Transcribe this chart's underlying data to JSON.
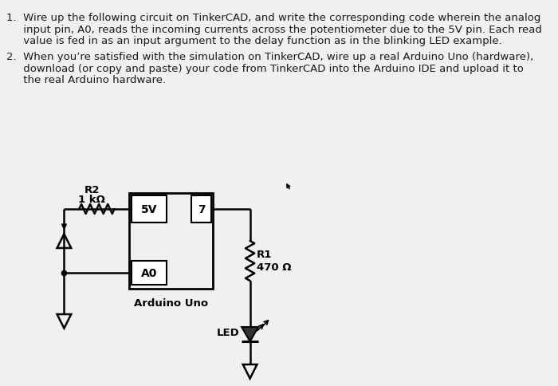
{
  "bg_color": "#f0f0f0",
  "text_color": "#1a1a1a",
  "line1": "1.  Wire up the following circuit on TinkerCAD, and write the corresponding code wherein the analog",
  "line2": "     input pin, A0, reads the incoming currents across the potentiometer due to the 5V pin. Each read",
  "line3": "     value is fed in as an input argument to the delay function as in the blinking LED example.",
  "line4": "2.  When you’re satisfied with the simulation on TinkerCAD, wire up a real Arduino Uno (hardware),",
  "line5": "     download (or copy and paste) your code from TinkerCAD into the Arduino IDE and upload it to",
  "line6": "     the real Arduino hardware.",
  "r2_label": "R2",
  "r2_value": "1 kΩ",
  "r1_label": "R1",
  "r1_value": "470 Ω",
  "pin5v": "5V",
  "pin7": "7",
  "pinA0": "A0",
  "arduino_label": "Arduino Uno",
  "led_label": "LED",
  "lw": 1.8,
  "fs_text": 9.5,
  "fs_label": 9.5
}
